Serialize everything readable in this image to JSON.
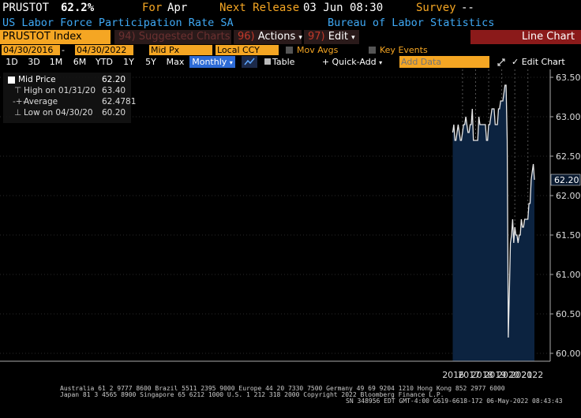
{
  "header": {
    "ticker": "PRUSTOT",
    "value": "62.2%",
    "for_label": "For",
    "for_value": "Apr",
    "next_label": "Next Release",
    "next_value": "03 Jun 08:30",
    "survey_label": "Survey",
    "survey_value": "--",
    "description": "US Labor Force Participation Rate SA",
    "source": "Bureau of Labor Statistics"
  },
  "toolbar": {
    "security": "PRUSTOT Index",
    "suggested_num": "94)",
    "suggested_label": "Suggested Charts",
    "actions_num": "96)",
    "actions_label": "Actions",
    "edit_num": "97)",
    "edit_label": "Edit",
    "title": "Line Chart"
  },
  "controls": {
    "start_date": "04/30/2016",
    "end_date": "04/30/2022",
    "field": "Mid Px",
    "currency": "Local CCY",
    "mov_avgs": "Mov Avgs",
    "key_events": "Key Events"
  },
  "ranges": {
    "items": [
      "1D",
      "3D",
      "1M",
      "6M",
      "YTD",
      "1Y",
      "5Y",
      "Max"
    ],
    "frequency": "Monthly",
    "table": "Table",
    "quick_add": "+ Quick-Add",
    "add_data_placeholder": "Add Data",
    "edit_chart": "Edit Chart"
  },
  "legend": {
    "rows": [
      {
        "label": "Mid Price",
        "value": "62.20"
      },
      {
        "label": "High on 01/31/20",
        "value": "63.40"
      },
      {
        "label": "Average",
        "value": "62.4781"
      },
      {
        "label": "Low on 04/30/20",
        "value": "60.20"
      }
    ]
  },
  "chart_data": {
    "type": "area",
    "title": "",
    "xlabel": "",
    "ylabel": "",
    "ylim": [
      59.9,
      63.6
    ],
    "yticks": [
      60.0,
      60.5,
      61.0,
      61.5,
      62.0,
      62.5,
      63.0,
      63.5
    ],
    "year_labels": [
      "2016",
      "2017",
      "2018",
      "2019",
      "2020",
      "2021",
      "2022"
    ],
    "last_value_label": "62.20",
    "x_start": "2016-04",
    "x_end": "2022-04",
    "values": [
      62.8,
      62.9,
      62.7,
      62.7,
      62.8,
      62.9,
      62.8,
      62.7,
      62.7,
      62.8,
      62.9,
      62.9,
      63.0,
      62.9,
      62.8,
      62.8,
      62.9,
      62.9,
      63.1,
      62.7,
      62.7,
      62.7,
      62.7,
      62.7,
      63.0,
      62.9,
      62.9,
      62.9,
      62.9,
      62.9,
      62.9,
      62.7,
      62.7,
      62.9,
      62.9,
      63.0,
      63.1,
      63.1,
      63.1,
      62.9,
      62.9,
      62.9,
      63.1,
      63.1,
      63.2,
      63.2,
      63.2,
      63.3,
      63.4,
      63.4,
      62.7,
      60.2,
      60.8,
      61.4,
      61.5,
      61.7,
      61.4,
      61.6,
      61.5,
      61.5,
      61.4,
      61.5,
      61.5,
      61.7,
      61.6,
      61.6,
      61.7,
      61.7,
      61.7,
      61.7,
      61.9,
      61.9,
      62.2,
      62.3,
      62.4,
      62.2
    ],
    "colors": {
      "line": "#e8e8e8",
      "fill": "#0c2340",
      "bg": "#000000",
      "grid": "#555555"
    }
  },
  "footer": {
    "line1": "Australia 61 2 9777 8600 Brazil 5511 2395 9000 Europe 44 20 7330 7500 Germany 49 69 9204 1210 Hong Kong 852 2977 6000",
    "line2": "Japan 81 3 4565 8900        Singapore 65 6212 1000        U.S. 1 212 318 2000          Copyright 2022 Bloomberg Finance L.P.",
    "line3": "SN 348956 EDT  GMT-4:00 G619-6618-172 06-May-2022 08:43:43"
  }
}
